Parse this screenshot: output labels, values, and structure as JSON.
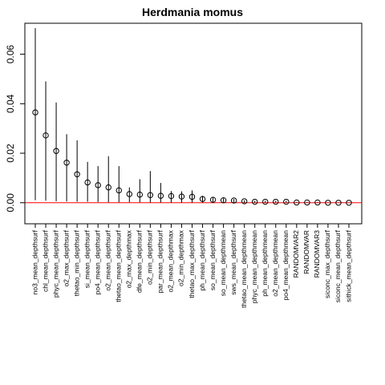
{
  "chart_data": {
    "type": "scatter",
    "title": "Herdmania momus",
    "xlabel": "",
    "ylabel": "",
    "ylim": [
      -0.0085,
      0.0725
    ],
    "yticks": [
      0.0,
      0.02,
      0.04,
      0.06
    ],
    "ytick_labels": [
      "0.00",
      "0.02",
      "0.04",
      "0.06"
    ],
    "baseline": 0,
    "colors": {
      "baseline": "#ff0000",
      "points": "#000000",
      "frame": "#000000"
    },
    "categories": [
      "no3_mean_depthsurf",
      "chl_mean_depthsurf",
      "phyc_mean_depthsurf",
      "o2_max_depthsurf",
      "thetao_min_depthsurf",
      "si_mean_depthsurf",
      "po4_mean_depthsurf",
      "o2_mean_depthsurf",
      "thetao_mean_depthsurf",
      "o2_max_depthmax",
      "dfe_mean_depthsurf",
      "o2_min_depthsurf",
      "par_mean_depthsurf",
      "o2_mean_depthmax",
      "o2_min_depthmax",
      "thetao_max_depthsurf",
      "ph_mean_depthsurf",
      "so_mean_depthsurf",
      "so_mean_depthmean",
      "sws_mean_depthsurf",
      "thetao_mean_depthmean",
      "phyc_mean_depthmean",
      "ph_mean_depthmean",
      "o2_mean_depthmean",
      "po4_mean_depthmean",
      "RANDOMVAR2",
      "RANDOMVAR",
      "RANDOMVAR3",
      "siconc_max_depthsurf",
      "siconc_mean_depthsurf",
      "sithick_mean_depthsurf"
    ],
    "values": [
      0.0365,
      0.0272,
      0.0209,
      0.0162,
      0.0115,
      0.0082,
      0.0071,
      0.0062,
      0.005,
      0.0035,
      0.0033,
      0.0031,
      0.0028,
      0.0027,
      0.0025,
      0.0024,
      0.0015,
      0.0012,
      0.001,
      0.0009,
      0.0006,
      0.0004,
      0.0004,
      0.0004,
      0.0004,
      0.0001,
      0.0001,
      0.0001,
      0.0,
      0.0,
      0.0
    ],
    "upper": [
      0.0705,
      0.049,
      0.0405,
      0.0277,
      0.0252,
      0.0165,
      0.0148,
      0.0188,
      0.0148,
      0.0062,
      0.0095,
      0.0128,
      0.008,
      0.0047,
      0.0046,
      0.005,
      0.0028,
      0.002,
      0.0018,
      0.0015,
      0.001,
      0.0008,
      0.0008,
      0.0008,
      0.0008,
      0.0002,
      0.0002,
      0.0002,
      0.0001,
      0.0001,
      0.0001
    ],
    "lower": [
      0.001,
      0.0008,
      0.0006,
      0.0005,
      0.0004,
      0.0004,
      0.0003,
      0.0002,
      0.0002,
      0.0002,
      0.0002,
      0.0001,
      0.0001,
      0.0001,
      0.0001,
      0.0001,
      0.0001,
      0.0001,
      0.0001,
      0.0,
      0.0,
      0.0,
      0.0,
      0.0,
      0.0,
      0.0,
      0.0,
      0.0,
      0.0,
      0.0,
      0.0
    ]
  }
}
